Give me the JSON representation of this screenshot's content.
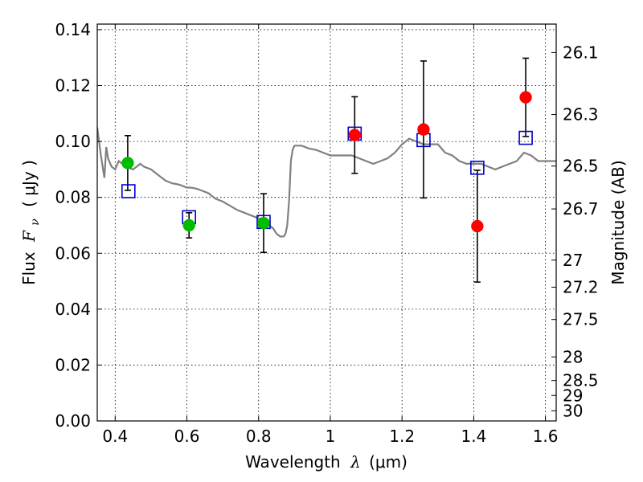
{
  "chart_data": {
    "type": "scatter",
    "xlabel": "Wavelength",
    "xlabel_symbol": "λ",
    "xlabel_unit": "(μm)",
    "ylabel_prefix": "Flux",
    "ylabel_symbol": "F",
    "ylabel_sub": "ν",
    "ylabel_unit": "( μJy )",
    "y2label": "Magnitude (AB)",
    "xlim": [
      0.35,
      1.63
    ],
    "ylim": [
      0.0,
      0.142
    ],
    "grid": true,
    "x_ticks": [
      0.4,
      0.6,
      0.8,
      1.0,
      1.2,
      1.4,
      1.6
    ],
    "x_tick_labels": [
      "0.4",
      "0.6",
      "0.8",
      "1",
      "1.2",
      "1.4",
      "1.6"
    ],
    "y_ticks": [
      0.0,
      0.02,
      0.04,
      0.06,
      0.08,
      0.1,
      0.12,
      0.14
    ],
    "y_tick_labels": [
      "0.00",
      "0.02",
      "0.04",
      "0.06",
      "0.08",
      "0.10",
      "0.12",
      "0.14"
    ],
    "y2_ticks": [
      26.1,
      26.3,
      26.5,
      26.7,
      27,
      27.2,
      27.5,
      28,
      28.5,
      29,
      30
    ],
    "y2_tick_labels": [
      "26.1",
      "26.3",
      "26.5",
      "26.7",
      "27",
      "27.2",
      "27.5",
      "28",
      "28.5",
      "29",
      "30"
    ],
    "series": [
      {
        "marker": "circle",
        "color": "#00bb00",
        "x": [
          0.435,
          0.606,
          0.814
        ],
        "y": [
          0.0923,
          0.07,
          0.0708
        ],
        "yerr": [
          0.0098,
          0.0045,
          0.0105
        ]
      },
      {
        "marker": "circle",
        "color": "#ff0000",
        "x": [
          1.068,
          1.26,
          1.41,
          1.545
        ],
        "y": [
          0.1023,
          0.1043,
          0.0697,
          0.1158
        ],
        "yerr": [
          0.0137,
          0.0245,
          0.02,
          0.014
        ]
      },
      {
        "marker": "open-square",
        "color": "#0000cc",
        "x": [
          0.437,
          0.606,
          0.814,
          1.068,
          1.26,
          1.41,
          1.545
        ],
        "y": [
          0.0822,
          0.0729,
          0.0712,
          0.1028,
          0.1005,
          0.0906,
          0.1013
        ]
      },
      {
        "marker": "line",
        "color": "#808080",
        "x": [
          0.35,
          0.36,
          0.37,
          0.375,
          0.38,
          0.39,
          0.4,
          0.41,
          0.42,
          0.43,
          0.44,
          0.45,
          0.46,
          0.47,
          0.48,
          0.49,
          0.5,
          0.51,
          0.52,
          0.53,
          0.54,
          0.55,
          0.56,
          0.57,
          0.58,
          0.59,
          0.6,
          0.61,
          0.62,
          0.63,
          0.64,
          0.65,
          0.66,
          0.665,
          0.67,
          0.68,
          0.7,
          0.72,
          0.74,
          0.76,
          0.78,
          0.8,
          0.82,
          0.84,
          0.85,
          0.86,
          0.865,
          0.87,
          0.875,
          0.88,
          0.885,
          0.89,
          0.895,
          0.9,
          0.91,
          0.92,
          0.94,
          0.96,
          0.98,
          1.0,
          1.02,
          1.04,
          1.06,
          1.08,
          1.1,
          1.12,
          1.14,
          1.16,
          1.18,
          1.2,
          1.22,
          1.24,
          1.26,
          1.28,
          1.3,
          1.32,
          1.34,
          1.36,
          1.38,
          1.4,
          1.42,
          1.44,
          1.46,
          1.48,
          1.5,
          1.52,
          1.54,
          1.56,
          1.58,
          1.6,
          1.63
        ],
        "y": [
          0.105,
          0.095,
          0.087,
          0.098,
          0.094,
          0.091,
          0.09,
          0.093,
          0.092,
          0.091,
          0.0905,
          0.09,
          0.091,
          0.092,
          0.091,
          0.0905,
          0.09,
          0.089,
          0.088,
          0.087,
          0.086,
          0.0855,
          0.085,
          0.0848,
          0.0845,
          0.084,
          0.0835,
          0.0835,
          0.0833,
          0.083,
          0.0825,
          0.082,
          0.0815,
          0.081,
          0.0805,
          0.0795,
          0.0785,
          0.077,
          0.0755,
          0.0745,
          0.0735,
          0.0725,
          0.071,
          0.069,
          0.067,
          0.066,
          0.066,
          0.066,
          0.067,
          0.07,
          0.079,
          0.093,
          0.097,
          0.0985,
          0.0985,
          0.0985,
          0.0975,
          0.097,
          0.096,
          0.095,
          0.095,
          0.095,
          0.095,
          0.094,
          0.093,
          0.092,
          0.093,
          0.094,
          0.096,
          0.099,
          0.101,
          0.1,
          0.099,
          0.099,
          0.099,
          0.096,
          0.095,
          0.093,
          0.092,
          0.092,
          0.092,
          0.091,
          0.09,
          0.091,
          0.092,
          0.093,
          0.096,
          0.095,
          0.093,
          0.093,
          0.093
        ]
      }
    ]
  }
}
